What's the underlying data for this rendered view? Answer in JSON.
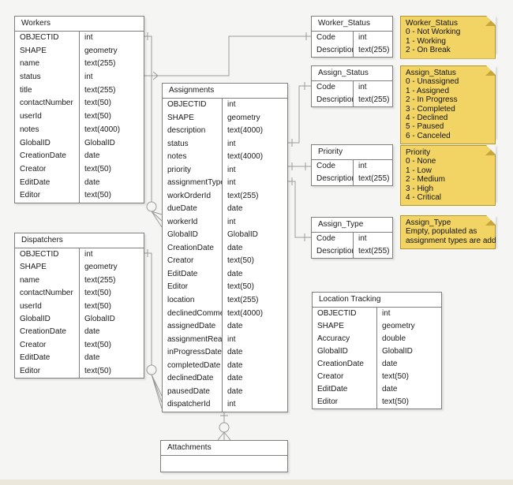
{
  "tables": {
    "workers": {
      "title": "Workers",
      "fields": [
        {
          "name": "OBJECTID",
          "type": "int"
        },
        {
          "name": "SHAPE",
          "type": "geometry"
        },
        {
          "name": "name",
          "type": "text(255)"
        },
        {
          "name": "status",
          "type": "int"
        },
        {
          "name": "title",
          "type": "text(255)"
        },
        {
          "name": "contactNumber",
          "type": "text(50)"
        },
        {
          "name": "userId",
          "type": "text(50)"
        },
        {
          "name": "notes",
          "type": "text(4000)"
        },
        {
          "name": "GlobalID",
          "type": "GlobalID"
        },
        {
          "name": "CreationDate",
          "type": "date"
        },
        {
          "name": "Creator",
          "type": "text(50)"
        },
        {
          "name": "EditDate",
          "type": "date"
        },
        {
          "name": "Editor",
          "type": "text(50)"
        }
      ]
    },
    "dispatchers": {
      "title": "Dispatchers",
      "fields": [
        {
          "name": "OBJECTID",
          "type": "int"
        },
        {
          "name": "SHAPE",
          "type": "geometry"
        },
        {
          "name": "name",
          "type": "text(255)"
        },
        {
          "name": "contactNumber",
          "type": "text(50)"
        },
        {
          "name": "userId",
          "type": "text(50)"
        },
        {
          "name": "GlobalID",
          "type": "GlobalID"
        },
        {
          "name": "CreationDate",
          "type": "date"
        },
        {
          "name": "Creator",
          "type": "text(50)"
        },
        {
          "name": "EditDate",
          "type": "date"
        },
        {
          "name": "Editor",
          "type": "text(50)"
        }
      ]
    },
    "assignments": {
      "title": "Assignments",
      "fields": [
        {
          "name": "OBJECTID",
          "type": "int"
        },
        {
          "name": "SHAPE",
          "type": "geometry"
        },
        {
          "name": "description",
          "type": "text(4000)"
        },
        {
          "name": "status",
          "type": "int"
        },
        {
          "name": "notes",
          "type": "text(4000)"
        },
        {
          "name": "priority",
          "type": "int"
        },
        {
          "name": "assignmentType",
          "type": "int"
        },
        {
          "name": "workOrderId",
          "type": "text(255)"
        },
        {
          "name": "dueDate",
          "type": "date"
        },
        {
          "name": "workerId",
          "type": "int"
        },
        {
          "name": "GlobalID",
          "type": "GlobalID"
        },
        {
          "name": "CreationDate",
          "type": "date"
        },
        {
          "name": "Creator",
          "type": "text(50)"
        },
        {
          "name": "EditDate",
          "type": "date"
        },
        {
          "name": "Editor",
          "type": "text(50)"
        },
        {
          "name": "location",
          "type": "text(255)"
        },
        {
          "name": "declinedComment",
          "type": "text(4000)"
        },
        {
          "name": "assignedDate",
          "type": "date"
        },
        {
          "name": "assignmentRead",
          "type": "int"
        },
        {
          "name": "inProgressDate",
          "type": "date"
        },
        {
          "name": "completedDate",
          "type": "date"
        },
        {
          "name": "declinedDate",
          "type": "date"
        },
        {
          "name": "pausedDate",
          "type": "date"
        },
        {
          "name": "dispatcherId",
          "type": "int"
        }
      ]
    },
    "worker_status": {
      "title": "Worker_Status",
      "fields": [
        {
          "name": "Code",
          "type": "int"
        },
        {
          "name": "Description",
          "type": "text(255)"
        }
      ]
    },
    "assign_status": {
      "title": "Assign_Status",
      "fields": [
        {
          "name": "Code",
          "type": "int"
        },
        {
          "name": "Description",
          "type": "text(255)"
        }
      ]
    },
    "priority": {
      "title": "Priority",
      "fields": [
        {
          "name": "Code",
          "type": "int"
        },
        {
          "name": "Description",
          "type": "text(255)"
        }
      ]
    },
    "assign_type": {
      "title": "Assign_Type",
      "fields": [
        {
          "name": "Code",
          "type": "int"
        },
        {
          "name": "Description",
          "type": "text(255)"
        }
      ]
    },
    "location_tracking": {
      "title": "Location Tracking",
      "fields": [
        {
          "name": "OBJECTID",
          "type": "int"
        },
        {
          "name": "SHAPE",
          "type": "geometry"
        },
        {
          "name": "Accuracy",
          "type": "double"
        },
        {
          "name": "GlobalID",
          "type": "GlobalID"
        },
        {
          "name": "CreationDate",
          "type": "date"
        },
        {
          "name": "Creator",
          "type": "text(50)"
        },
        {
          "name": "EditDate",
          "type": "date"
        },
        {
          "name": "Editor",
          "type": "text(50)"
        }
      ]
    },
    "attachments": {
      "title": "Attachments",
      "fields": []
    }
  },
  "notes": {
    "worker_status": {
      "title": "Worker_Status",
      "lines": [
        "0 - Not Working",
        "1 - Working",
        "2 - On Break"
      ]
    },
    "assign_status": {
      "title": "Assign_Status",
      "lines": [
        "0 - Unassigned",
        "1 - Assigned",
        "2 - In Progress",
        "3 - Completed",
        "4 - Declined",
        "5 - Paused",
        "6 - Canceled"
      ]
    },
    "priority": {
      "title": "Priority",
      "lines": [
        "0 - None",
        "1 - Low",
        "2 - Medium",
        "3 - High",
        "4 - Critical"
      ]
    },
    "assign_type": {
      "title": "Assign_Type",
      "lines": [
        "Empty, populated as",
        "assignment types are added"
      ]
    }
  },
  "relationships": [
    {
      "from": "Workers.OBJECTID",
      "to": "Assignments.workerId",
      "type": "one-to-zero-or-many"
    },
    {
      "from": "Workers.status",
      "to": "Worker_Status.Code",
      "type": "one"
    },
    {
      "from": "Dispatchers.OBJECTID",
      "to": "Assignments.dispatcherId",
      "type": "one-to-zero-or-many"
    },
    {
      "from": "Assignments.status",
      "to": "Assign_Status.Code",
      "type": "one-to-one"
    },
    {
      "from": "Assignments.priority",
      "to": "Priority.Code",
      "type": "one-to-one"
    },
    {
      "from": "Assignments.assignmentType",
      "to": "Assign_Type.Code",
      "type": "one-to-one"
    },
    {
      "from": "Assignments",
      "to": "Attachments",
      "type": "one-to-zero-or-many"
    }
  ],
  "colors": {
    "note_fill": "#f2d464",
    "note_fold": "#c8a63b",
    "note_border": "#b3962f",
    "table_border": "#7f7f7f",
    "edge": "#9a9a9a",
    "background": "#f5f5f3"
  }
}
